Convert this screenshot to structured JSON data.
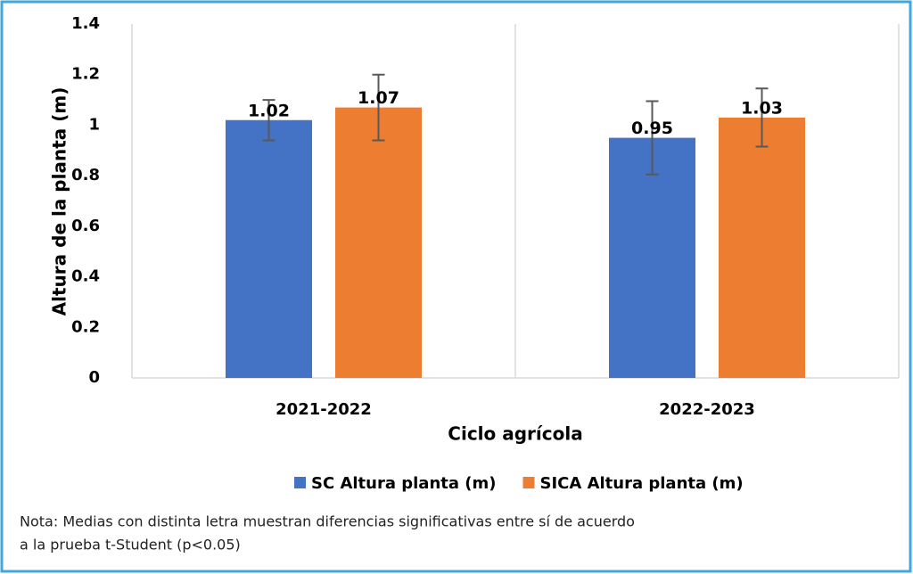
{
  "chart_data": {
    "type": "bar",
    "categories": [
      "2021-2022",
      "2022-2023"
    ],
    "series": [
      {
        "name": "SC Altura planta (m)",
        "color": "#4472c4",
        "values": [
          1.02,
          0.95
        ],
        "errors": [
          0.08,
          0.145
        ]
      },
      {
        "name": "SICA Altura planta (m)",
        "color": "#ed7d31",
        "values": [
          1.07,
          1.03
        ],
        "errors": [
          0.13,
          0.115
        ]
      }
    ],
    "ylim": [
      0,
      1.4
    ],
    "yticks": [
      0,
      0.2,
      0.4,
      0.6,
      0.8,
      1,
      1.2,
      1.4
    ],
    "y_label": "Altura de la planta (m)",
    "x_label": "Ciclo agrícola",
    "legend": "bottom",
    "annotations": [
      "Nota: Medias con distinta letra muestran diferencias significativas entre sí de acuerdo",
      "a la prueba t-Student (p<0.05)"
    ]
  }
}
